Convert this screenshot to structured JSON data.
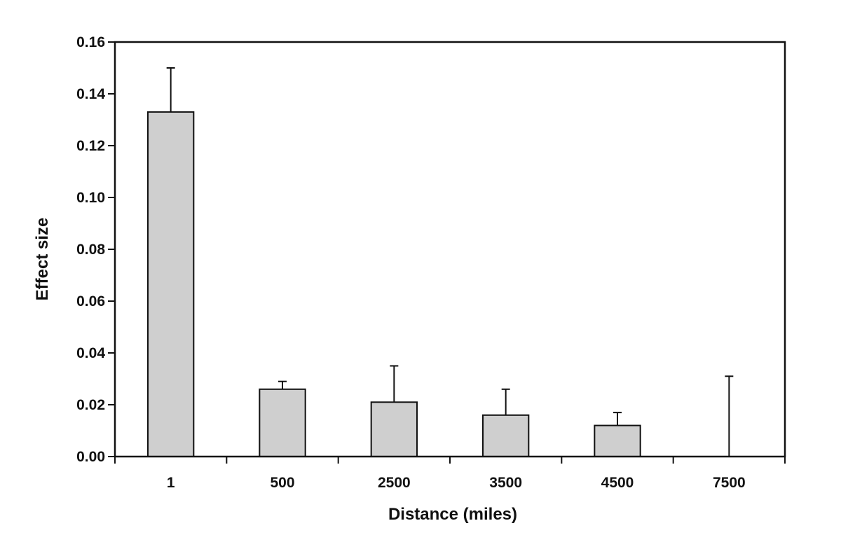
{
  "chart_data": {
    "type": "bar",
    "title": "",
    "xlabel": "Distance (miles)",
    "ylabel": "Effect size",
    "categories": [
      "1",
      "500",
      "2500",
      "3500",
      "4500",
      "7500"
    ],
    "values": [
      0.133,
      0.026,
      0.021,
      0.016,
      0.012,
      0.0
    ],
    "errors": [
      0.017,
      0.003,
      0.014,
      0.01,
      0.005,
      0.031
    ],
    "ylim": [
      0,
      0.16
    ],
    "yticks": [
      "0.00",
      "0.02",
      "0.04",
      "0.06",
      "0.08",
      "0.10",
      "0.12",
      "0.14",
      "0.16"
    ],
    "grid": false,
    "legend": "none",
    "bar_color": "#cfcfcf"
  }
}
